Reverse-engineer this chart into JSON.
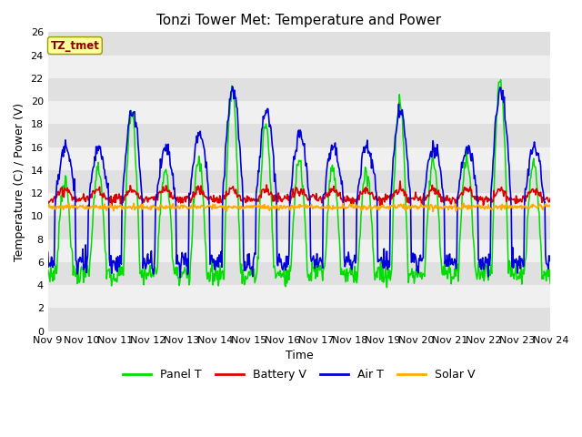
{
  "title": "Tonzi Tower Met: Temperature and Power",
  "xlabel": "Time",
  "ylabel": "Temperature (C) / Power (V)",
  "ylim": [
    0,
    26
  ],
  "yticks": [
    0,
    2,
    4,
    6,
    8,
    10,
    12,
    14,
    16,
    18,
    20,
    22,
    24,
    26
  ],
  "xtick_labels": [
    "Nov 9",
    "Nov 10",
    "Nov 11",
    "Nov 12",
    "Nov 13",
    "Nov 14",
    "Nov 15",
    "Nov 16",
    "Nov 17",
    "Nov 18",
    "Nov 19",
    "Nov 20",
    "Nov 21",
    "Nov 22",
    "Nov 23",
    "Nov 24"
  ],
  "dataset_label": "TZ_tmet",
  "legend_entries": [
    "Panel T",
    "Battery V",
    "Air T",
    "Solar V"
  ],
  "line_colors": [
    "#00dd00",
    "#dd0000",
    "#0000dd",
    "#ffaa00"
  ],
  "background_color": "#ffffff",
  "plot_bg_light": "#f0f0f0",
  "plot_bg_dark": "#e0e0e0",
  "title_fontsize": 11,
  "axis_fontsize": 9,
  "tick_fontsize": 8,
  "n_days": 15,
  "n_per_day": 48,
  "panel_amps": [
    8,
    9,
    14,
    9,
    10,
    16,
    13,
    10,
    9,
    9,
    15,
    10,
    10,
    17,
    10,
    8
  ],
  "panel_base": 5,
  "panel_night": 5,
  "air_amps": [
    5,
    5,
    8,
    5,
    6,
    10,
    8,
    6,
    5,
    5,
    8,
    5,
    5,
    10,
    5,
    5
  ],
  "air_base": 11,
  "air_night": 6,
  "battery_base": 11.5,
  "battery_amp": 0.8,
  "solar_base": 10.8,
  "solar_noise": 0.12
}
